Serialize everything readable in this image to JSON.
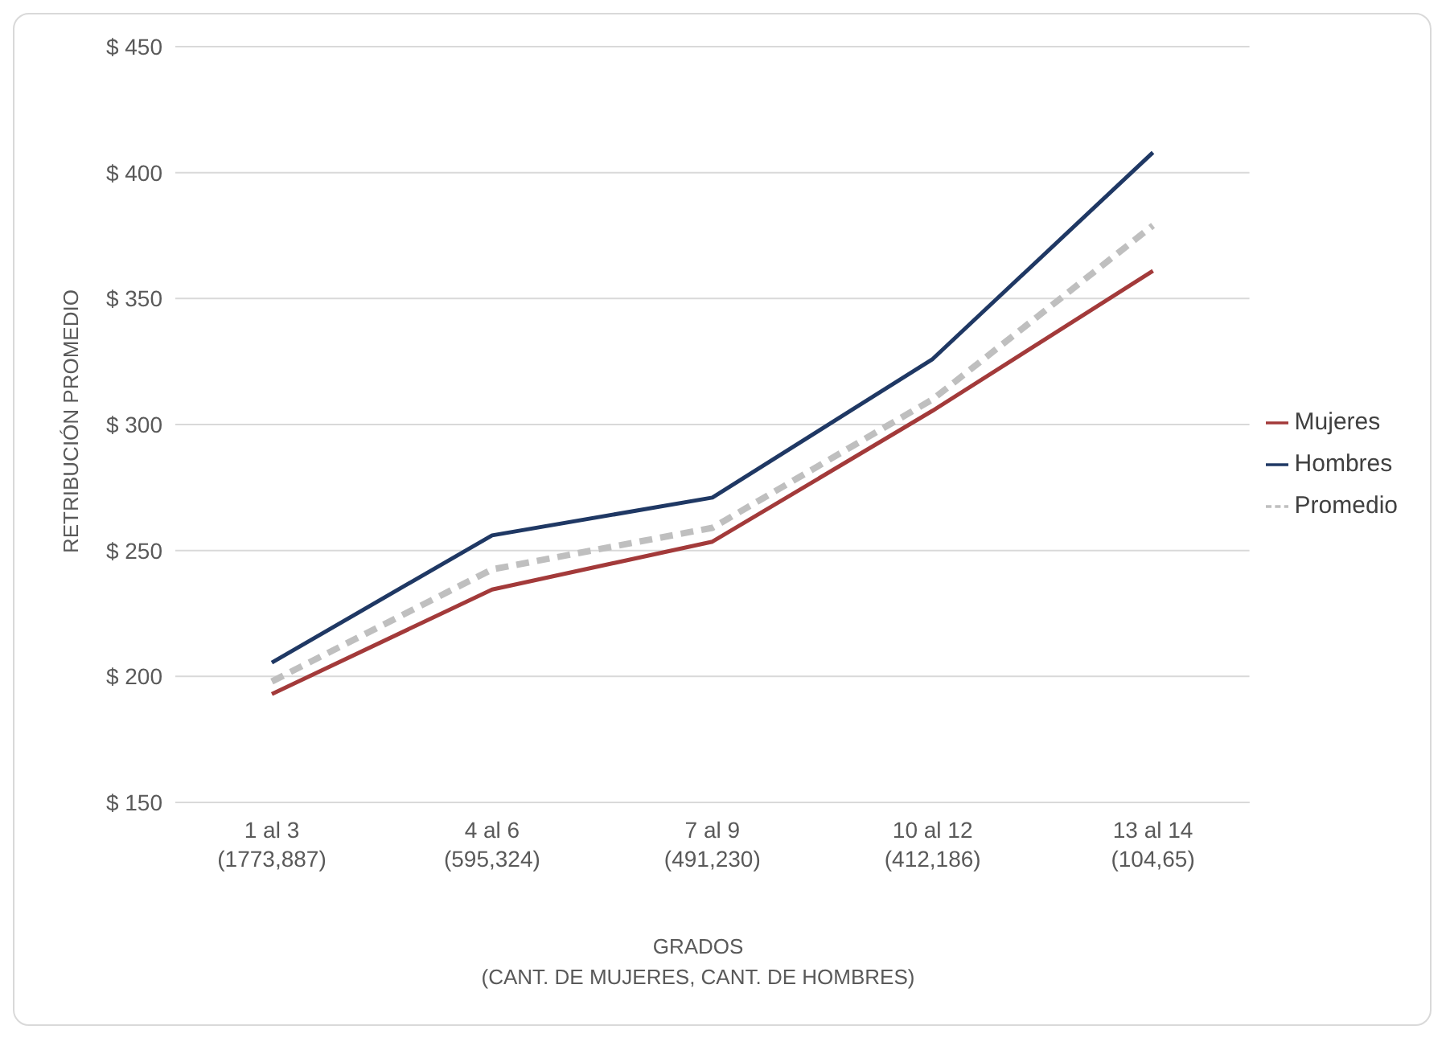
{
  "chart_data": {
    "type": "line",
    "ylabel": "RETRIBUCIÓN PROMEDIO",
    "xlabel": "GRADOS\n(CANT. DE MUJERES, CANT. DE HOMBRES)",
    "categories": [
      "1 al 3\n(1773,887)",
      "4 al 6\n(595,324)",
      "7 al 9\n(491,230)",
      "10 al 12\n(412,186)",
      "13 al 14\n(104,65)"
    ],
    "series": [
      {
        "name": "Mujeres",
        "color": "#a33a3a",
        "values": [
          193,
          234.5,
          253.5,
          305.5,
          361
        ]
      },
      {
        "name": "Hombres",
        "color": "#1f3864",
        "values": [
          205.5,
          256,
          271,
          326,
          408
        ]
      },
      {
        "name": "Promedio",
        "color": "#bfbfbf",
        "values": [
          198,
          242.5,
          259,
          310,
          379
        ],
        "line_style": "dashed"
      }
    ],
    "ylim": [
      150,
      450
    ],
    "yticks": [
      {
        "value": 150,
        "label": "$ 150"
      },
      {
        "value": 200,
        "label": "$ 200"
      },
      {
        "value": 250,
        "label": "$ 250"
      },
      {
        "value": 300,
        "label": "$ 300"
      },
      {
        "value": 350,
        "label": "$ 350"
      },
      {
        "value": 400,
        "label": "$ 400"
      },
      {
        "value": 450,
        "label": "$ 450"
      }
    ],
    "grid": "y",
    "legend": "right",
    "marker": "none",
    "line_style": "solid"
  }
}
